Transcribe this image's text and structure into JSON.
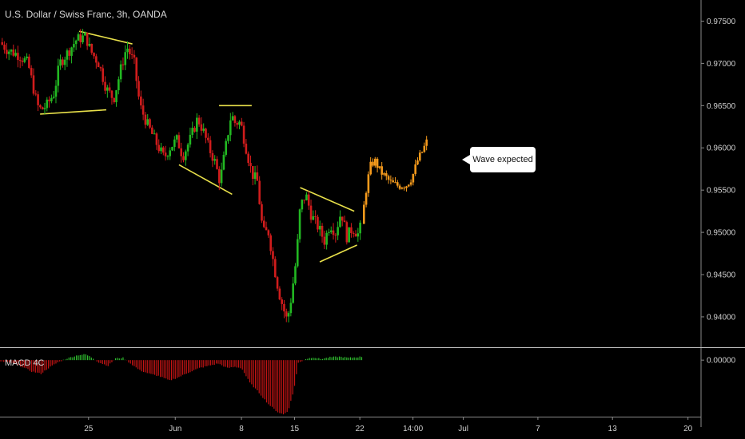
{
  "header": {
    "symbol_title": "U.S. Dollar / Swiss Franc, 3h, OANDA"
  },
  "indicator": {
    "label": "MACD 4C",
    "zero_label": "0.00000"
  },
  "annotation": {
    "callout_text": "Wave expected"
  },
  "colors": {
    "up": "#22b822",
    "down": "#d11c1c",
    "projection": "#f59a1c",
    "trendline": "#e8e04a",
    "macd_up": "#2fbf2f",
    "macd_down": "#c41414"
  },
  "chart_data": {
    "type": "candlestick",
    "title": "U.S. Dollar / Swiss Franc, 3h, OANDA",
    "y_ticks": [
      "0.97500",
      "0.97000",
      "0.96500",
      "0.96000",
      "0.95500",
      "0.95000",
      "0.94500",
      "0.94000"
    ],
    "y_tick_values": [
      0.975,
      0.97,
      0.965,
      0.96,
      0.955,
      0.95,
      0.945,
      0.94
    ],
    "ylim": [
      0.9365,
      0.9775
    ],
    "x_ticks": [
      "25",
      "Jun",
      "8",
      "15",
      "22",
      "14:00",
      "Jul",
      "7",
      "13",
      "20"
    ],
    "x_tick_positions": [
      0.5,
      9.8,
      16.9,
      22.6,
      29.6,
      35.3,
      40.7,
      48.7,
      56.7,
      64.8
    ],
    "xlim": [
      -9,
      66.2
    ],
    "price_path": [
      [
        -9.0,
        0.9725
      ],
      [
        -8.2,
        0.9716
      ],
      [
        -7.0,
        0.971
      ],
      [
        -6.0,
        0.97
      ],
      [
        -5.5,
        0.9675
      ],
      [
        -5.0,
        0.965
      ],
      [
        -4.6,
        0.9645
      ],
      [
        -4.0,
        0.965
      ],
      [
        -3.2,
        0.9665
      ],
      [
        -2.6,
        0.97
      ],
      [
        -1.8,
        0.9712
      ],
      [
        -0.8,
        0.9728
      ],
      [
        0.2,
        0.9732
      ],
      [
        0.7,
        0.9715
      ],
      [
        1.6,
        0.97
      ],
      [
        2.4,
        0.967
      ],
      [
        3.2,
        0.9658
      ],
      [
        4.0,
        0.9695
      ],
      [
        4.6,
        0.972
      ],
      [
        5.4,
        0.97
      ],
      [
        6.0,
        0.965
      ],
      [
        6.8,
        0.9628
      ],
      [
        7.8,
        0.9605
      ],
      [
        8.6,
        0.9588
      ],
      [
        9.2,
        0.96
      ],
      [
        10.0,
        0.961
      ],
      [
        10.6,
        0.959
      ],
      [
        11.4,
        0.961
      ],
      [
        12.2,
        0.9635
      ],
      [
        12.8,
        0.962
      ],
      [
        13.4,
        0.96
      ],
      [
        14.0,
        0.9585
      ],
      [
        14.6,
        0.956
      ],
      [
        15.2,
        0.96
      ],
      [
        15.8,
        0.964
      ],
      [
        16.2,
        0.963
      ],
      [
        16.8,
        0.963
      ],
      [
        17.4,
        0.96
      ],
      [
        18.0,
        0.957
      ],
      [
        18.6,
        0.956
      ],
      [
        19.2,
        0.95
      ],
      [
        19.8,
        0.95
      ],
      [
        20.4,
        0.946
      ],
      [
        20.9,
        0.943
      ],
      [
        21.4,
        0.941
      ],
      [
        21.8,
        0.9395
      ],
      [
        22.2,
        0.942
      ],
      [
        22.8,
        0.947
      ],
      [
        23.2,
        0.953
      ],
      [
        23.8,
        0.9545
      ],
      [
        24.4,
        0.952
      ],
      [
        25.2,
        0.9505
      ],
      [
        25.8,
        0.949
      ],
      [
        26.4,
        0.951
      ],
      [
        27.0,
        0.95
      ],
      [
        27.6,
        0.9525
      ],
      [
        28.2,
        0.9495
      ],
      [
        28.8,
        0.9505
      ],
      [
        29.4,
        0.9498
      ],
      [
        29.8,
        0.951
      ]
    ],
    "projection_path": [
      [
        29.8,
        0.951
      ],
      [
        30.2,
        0.9545
      ],
      [
        30.7,
        0.9578
      ],
      [
        31.2,
        0.9585
      ],
      [
        31.8,
        0.9572
      ],
      [
        32.4,
        0.9565
      ],
      [
        33.0,
        0.9558
      ],
      [
        33.8,
        0.9555
      ],
      [
        34.6,
        0.9556
      ],
      [
        35.2,
        0.9565
      ],
      [
        35.8,
        0.9585
      ],
      [
        36.4,
        0.9598
      ],
      [
        36.8,
        0.9608
      ]
    ],
    "trendlines": [
      {
        "from": [
          -4.7,
          0.964
        ],
        "to": [
          2.4,
          0.9645
        ]
      },
      {
        "from": [
          -0.5,
          0.9738
        ],
        "to": [
          5.2,
          0.9723
        ]
      },
      {
        "from": [
          10.2,
          0.958
        ],
        "to": [
          15.9,
          0.9545
        ]
      },
      {
        "from": [
          14.5,
          0.965
        ],
        "to": [
          18.0,
          0.965
        ]
      },
      {
        "from": [
          23.2,
          0.9553
        ],
        "to": [
          29.0,
          0.9525
        ]
      },
      {
        "from": [
          25.3,
          0.9465
        ],
        "to": [
          29.3,
          0.9485
        ]
      }
    ],
    "macd": {
      "zero": 0.0,
      "ylim": [
        -1.0,
        0.2
      ],
      "path": [
        [
          -9.0,
          -0.02
        ],
        [
          -7.6,
          -0.06
        ],
        [
          -6.6,
          -0.12
        ],
        [
          -5.6,
          -0.2
        ],
        [
          -4.6,
          -0.24
        ],
        [
          -3.8,
          -0.14
        ],
        [
          -2.8,
          -0.04
        ],
        [
          -1.8,
          0.03
        ],
        [
          -0.6,
          0.09
        ],
        [
          0.2,
          0.1
        ],
        [
          0.9,
          0.04
        ],
        [
          1.6,
          -0.04
        ],
        [
          2.6,
          -0.1
        ],
        [
          3.4,
          0.03
        ],
        [
          4.2,
          0.04
        ],
        [
          5.0,
          -0.06
        ],
        [
          6.0,
          -0.18
        ],
        [
          7.0,
          -0.24
        ],
        [
          8.0,
          -0.28
        ],
        [
          9.2,
          -0.36
        ],
        [
          10.2,
          -0.3
        ],
        [
          11.2,
          -0.22
        ],
        [
          12.4,
          -0.14
        ],
        [
          13.4,
          -0.1
        ],
        [
          14.4,
          -0.06
        ],
        [
          15.4,
          -0.14
        ],
        [
          16.2,
          -0.12
        ],
        [
          16.9,
          -0.14
        ],
        [
          17.8,
          -0.4
        ],
        [
          18.8,
          -0.58
        ],
        [
          19.8,
          -0.78
        ],
        [
          20.8,
          -0.92
        ],
        [
          21.4,
          -0.96
        ],
        [
          21.9,
          -0.9
        ],
        [
          22.5,
          -0.55
        ],
        [
          23.0,
          -0.05
        ],
        [
          23.8,
          0.02
        ],
        [
          24.6,
          0.05
        ],
        [
          25.4,
          0.02
        ],
        [
          26.4,
          0.05
        ],
        [
          27.4,
          0.06
        ],
        [
          28.4,
          0.04
        ],
        [
          29.8,
          0.06
        ]
      ]
    }
  }
}
